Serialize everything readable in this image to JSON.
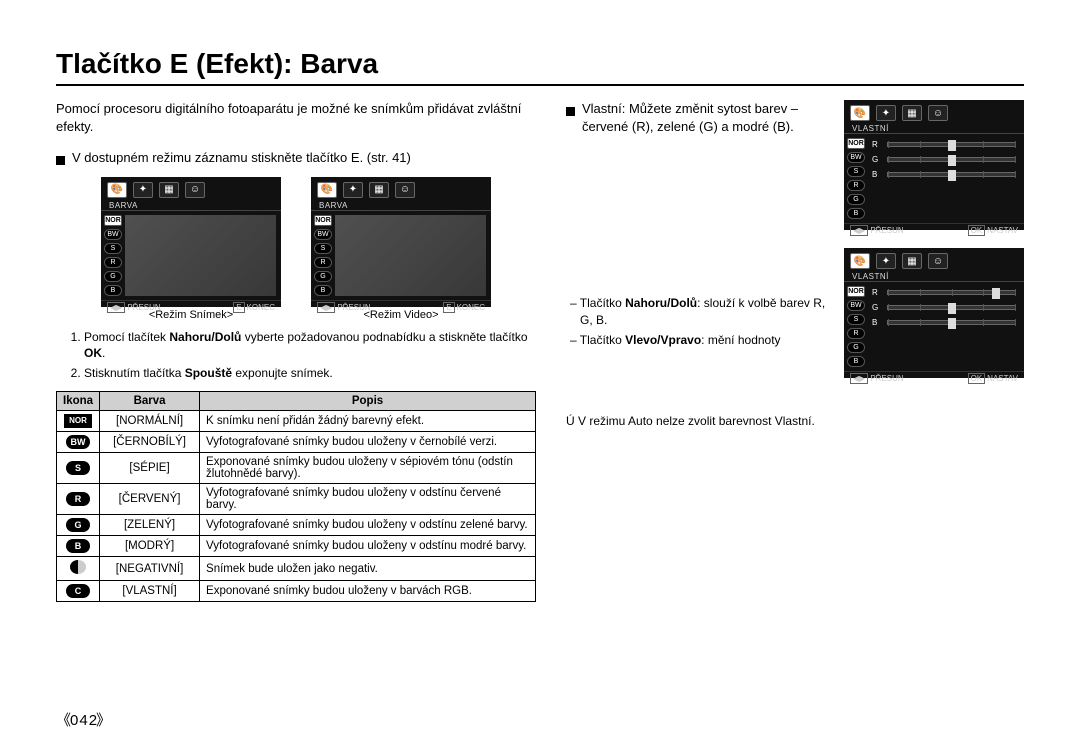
{
  "title": "Tlačítko E (Efekt): Barva",
  "page_number": "042",
  "left": {
    "intro": "Pomocí procesoru digitálního fotoaparátu je možné ke snímkům přidávat zvláštní efekty.",
    "bullet": "V dostupném režimu záznamu stiskněte tlačítko E. (str. 41)",
    "lcd": {
      "tab_title": "BARVA",
      "sidebar": [
        "NOR",
        "BW",
        "S",
        "R",
        "G",
        "B"
      ],
      "sidebar_sel": "NOR",
      "foot_move": "PŘESUN",
      "foot_key": "E",
      "foot_exit": "KONEC"
    },
    "caption_still": "<Režim Snímek>",
    "caption_video": "<Režim Video>",
    "step1_pre": "Pomocí tlačítek ",
    "step1_b1": "Nahoru/Dolů",
    "step1_mid": " vyberte požadovanou podnabídku a stiskněte tlačítko ",
    "step1_b2": "OK",
    "step1_post": ".",
    "step2_pre": "Stisknutím tlačítka ",
    "step2_b1": "Spouště",
    "step2_post": " exponujte snímek.",
    "thead": {
      "icon": "Ikona",
      "name": "Barva",
      "desc": "Popis"
    },
    "rows": [
      {
        "icon_type": "nor",
        "icon": "NOR",
        "name": "[NORMÁLNÍ]",
        "desc": "K snímku není přidán žádný barevný efekt."
      },
      {
        "icon_type": "pill",
        "icon": "BW",
        "name": "[ČERNOBÍLÝ]",
        "desc": "Vyfotografované snímky budou uloženy v černobílé verzi."
      },
      {
        "icon_type": "pill",
        "icon": "S",
        "name": "[SÉPIE]",
        "desc": "Exponované snímky budou uloženy v sépiovém tónu (odstín žlutohnědé barvy)."
      },
      {
        "icon_type": "pill",
        "icon": "R",
        "name": "[ČERVENÝ]",
        "desc": "Vyfotografované snímky budou uloženy v odstínu červené barvy."
      },
      {
        "icon_type": "pill",
        "icon": "G",
        "name": "[ZELENÝ]",
        "desc": "Vyfotografované snímky budou uloženy v odstínu zelené barvy."
      },
      {
        "icon_type": "pill",
        "icon": "B",
        "name": "[MODRÝ]",
        "desc": "Vyfotografované snímky budou uloženy v odstínu modré barvy."
      },
      {
        "icon_type": "neg",
        "icon": "",
        "name": "[NEGATIVNÍ]",
        "desc": "Snímek bude uložen jako negativ."
      },
      {
        "icon_type": "pill",
        "icon": "C",
        "name": "[VLASTNÍ]",
        "desc": "Exponované snímky budou uloženy v barvách RGB."
      }
    ]
  },
  "right": {
    "bullet": "Vlastní: Můžete změnit sytost barev – červené (R), zelené (G) a modré (B).",
    "lcd": {
      "tab_title": "VLASTNÍ",
      "sliders": [
        "R",
        "G",
        "B"
      ],
      "foot_move": "PŘESUN",
      "foot_key": "OK",
      "foot_set": "NASTAV"
    },
    "slider1_pos": [
      50,
      50,
      50
    ],
    "slider2_pos": [
      85,
      50,
      50
    ],
    "note1_pre": "– Tlačítko ",
    "note1_b": "Nahoru/Dolů",
    "note1_post": ": slouží k volbě barev R, G, B.",
    "note2_pre": "– Tlačítko ",
    "note2_b": "Vlevo/Vpravo",
    "note2_post": ": mění hodnoty",
    "asterisk": "Ú   V režimu Auto nelze zvolit barevnost Vlastní."
  },
  "colors": {
    "lcd_bg": "#111111",
    "th_bg": "#d0d0d0"
  }
}
